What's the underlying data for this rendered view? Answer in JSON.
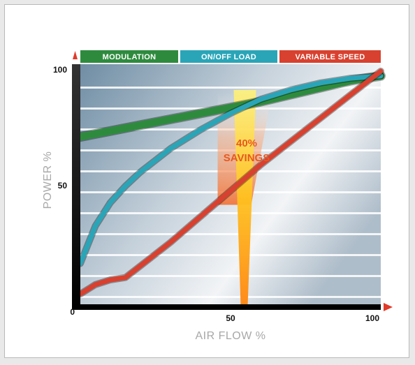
{
  "chart_data": {
    "type": "line",
    "xlabel": "AIR FLOW %",
    "ylabel": "POWER %",
    "xlim": [
      0,
      100
    ],
    "ylim": [
      0,
      100
    ],
    "x_ticks": [
      "0",
      "50",
      "100"
    ],
    "y_ticks": [
      "100",
      "50"
    ],
    "legend_position": "top",
    "annotation": {
      "line1": "40%",
      "line2": "SAVINGS",
      "x_center": 55
    },
    "series": [
      {
        "name": "MODULATION",
        "color": "#2e8b3e",
        "x": [
          0,
          10,
          20,
          30,
          40,
          50,
          60,
          70,
          80,
          90,
          100
        ],
        "y": [
          72,
          74.5,
          77,
          79.5,
          82,
          84.5,
          87,
          90,
          93,
          96,
          98
        ]
      },
      {
        "name": "ON/OFF LOAD",
        "color": "#2aa5b8",
        "x": [
          0,
          5,
          10,
          15,
          20,
          25,
          30,
          35,
          40,
          45,
          50,
          55,
          60,
          70,
          80,
          90,
          100
        ],
        "y": [
          18,
          34,
          44,
          51,
          57,
          62,
          67,
          71,
          75,
          78.5,
          82,
          85,
          88,
          92,
          95,
          97,
          98
        ]
      },
      {
        "name": "VARIABLE SPEED",
        "color": "#d8412f",
        "x": [
          0,
          5,
          10,
          15,
          20,
          30,
          40,
          50,
          60,
          70,
          80,
          90,
          100
        ],
        "y": [
          5,
          9,
          11,
          12,
          17,
          27,
          38,
          49,
          60,
          70,
          80,
          90,
          100
        ]
      }
    ]
  }
}
